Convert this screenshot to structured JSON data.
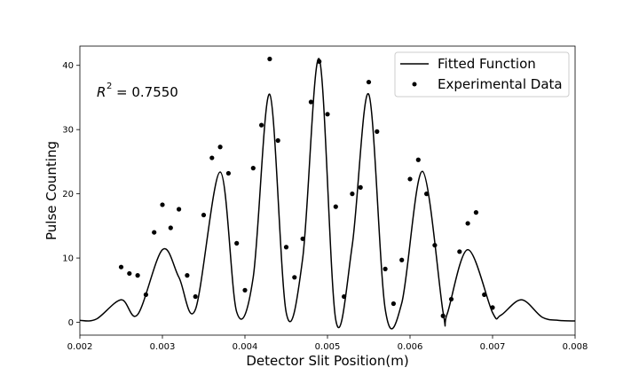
{
  "chart_data": {
    "type": "scatter",
    "xlabel": "Detector Slit Position(m)",
    "ylabel": "Pulse Counting",
    "xlim": [
      0.002,
      0.008
    ],
    "ylim": [
      -2,
      43
    ],
    "xticks": [
      0.002,
      0.003,
      0.004,
      0.005,
      0.006,
      0.007,
      0.008
    ],
    "xtick_labels": [
      "0.002",
      "0.003",
      "0.004",
      "0.005",
      "0.006",
      "0.007",
      "0.008"
    ],
    "yticks": [
      0,
      10,
      20,
      30,
      40
    ],
    "ytick_labels": [
      "0",
      "10",
      "20",
      "30",
      "40"
    ],
    "annotation": {
      "r2_value": "= 0.7550"
    },
    "legend": {
      "position": "upper right",
      "entries": [
        "Fitted Function",
        "Experimental Data"
      ]
    },
    "series": [
      {
        "name": "Fitted Function",
        "kind": "line",
        "color": "#000000",
        "x": [
          0.002,
          0.0022,
          0.0025,
          0.0027,
          0.003,
          0.0032,
          0.0034,
          0.0037,
          0.0039,
          0.0041,
          0.0043,
          0.0045,
          0.0047,
          0.0049,
          0.0051,
          0.0053,
          0.0055,
          0.0057,
          0.0059,
          0.00615,
          0.0064,
          0.00645,
          0.0067,
          0.007,
          0.0071,
          0.00735,
          0.0076,
          0.0078,
          0.008
        ],
        "y": [
          0.3,
          0.5,
          3.5,
          1.2,
          11.3,
          7.0,
          2.0,
          23.4,
          1.6,
          7.0,
          35.5,
          1.5,
          10.0,
          41.0,
          0.4,
          12.0,
          35.5,
          2.0,
          3.0,
          23.5,
          1.6,
          1.3,
          11.3,
          1.5,
          1.1,
          3.5,
          0.8,
          0.3,
          0.2
        ]
      },
      {
        "name": "Experimental Data",
        "kind": "scatter",
        "color": "#000000",
        "x": [
          0.0025,
          0.0026,
          0.0027,
          0.0028,
          0.0029,
          0.003,
          0.0031,
          0.0032,
          0.0033,
          0.0034,
          0.0035,
          0.0036,
          0.0037,
          0.0038,
          0.0039,
          0.004,
          0.0041,
          0.0042,
          0.0043,
          0.0044,
          0.0045,
          0.0046,
          0.0047,
          0.0048,
          0.0049,
          0.005,
          0.0051,
          0.0052,
          0.0053,
          0.0054,
          0.0055,
          0.0056,
          0.0057,
          0.0058,
          0.0059,
          0.006,
          0.0061,
          0.0062,
          0.0063,
          0.0064,
          0.0065,
          0.0066,
          0.0067,
          0.0068,
          0.0069,
          0.007
        ],
        "y": [
          8.6,
          7.6,
          7.3,
          4.3,
          14.0,
          18.3,
          14.7,
          17.6,
          7.3,
          4.0,
          16.7,
          25.6,
          27.3,
          23.2,
          12.3,
          5.0,
          24.0,
          30.7,
          41.0,
          28.3,
          11.7,
          7.0,
          13.0,
          34.3,
          40.6,
          32.4,
          18.0,
          4.0,
          20.0,
          21.0,
          37.4,
          29.7,
          8.3,
          2.9,
          9.7,
          22.3,
          25.3,
          20.0,
          12.0,
          1.0,
          3.6,
          11.0,
          15.4,
          17.1,
          4.3,
          2.3
        ]
      }
    ]
  }
}
